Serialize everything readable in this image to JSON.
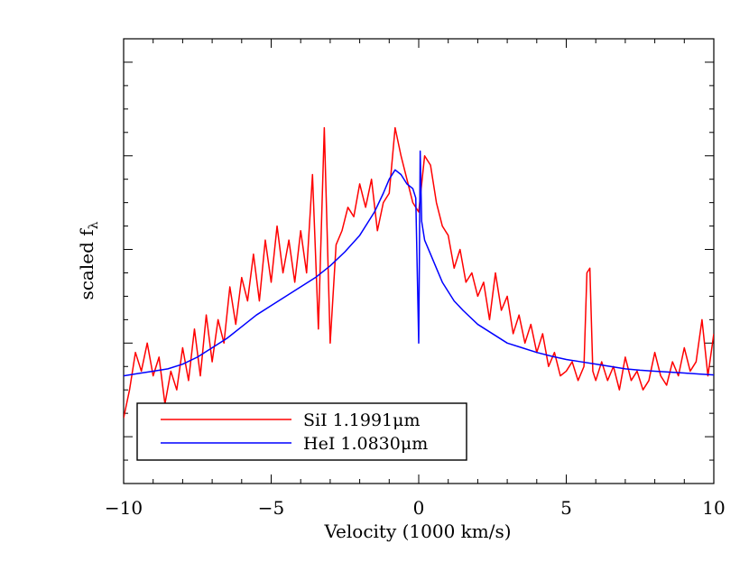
{
  "chart_data": {
    "type": "line",
    "title": "",
    "xlabel": "Velocity (1000 km/s)",
    "ylabel": "scaled f",
    "ylabel_subscript": "λ",
    "xlim": [
      -10,
      10
    ],
    "ylim": [
      -1.0,
      8.5
    ],
    "x_ticks": [
      "−10",
      "−5",
      "0",
      "5",
      "10"
    ],
    "x_tick_values": [
      -10,
      -5,
      0,
      5,
      10
    ],
    "y_tick_labels_visible": false,
    "grid": false,
    "legend": {
      "position": "bottom-left",
      "entries": [
        {
          "name": "SiI 1.1991μm",
          "color": "#ff0000"
        },
        {
          "name": "HeI 1.0830μm",
          "color": "#0000ff"
        }
      ]
    },
    "series": [
      {
        "name": "SiI 1.1991μm",
        "color": "#ff0000",
        "x": [
          -10.0,
          -9.8,
          -9.6,
          -9.4,
          -9.2,
          -9.0,
          -8.8,
          -8.6,
          -8.4,
          -8.2,
          -8.0,
          -7.8,
          -7.6,
          -7.4,
          -7.2,
          -7.0,
          -6.8,
          -6.6,
          -6.4,
          -6.2,
          -6.0,
          -5.8,
          -5.6,
          -5.4,
          -5.2,
          -5.0,
          -4.8,
          -4.6,
          -4.4,
          -4.2,
          -4.0,
          -3.8,
          -3.6,
          -3.4,
          -3.2,
          -3.0,
          -2.8,
          -2.6,
          -2.4,
          -2.2,
          -2.0,
          -1.8,
          -1.6,
          -1.4,
          -1.2,
          -1.0,
          -0.8,
          -0.6,
          -0.4,
          -0.2,
          0.0,
          0.2,
          0.4,
          0.6,
          0.8,
          1.0,
          1.2,
          1.4,
          1.6,
          1.8,
          2.0,
          2.2,
          2.4,
          2.6,
          2.8,
          3.0,
          3.2,
          3.4,
          3.6,
          3.8,
          4.0,
          4.2,
          4.4,
          4.6,
          4.8,
          5.0,
          5.2,
          5.4,
          5.6,
          5.7,
          5.8,
          5.9,
          6.0,
          6.2,
          6.4,
          6.6,
          6.8,
          7.0,
          7.2,
          7.4,
          7.6,
          7.8,
          8.0,
          8.2,
          8.4,
          8.6,
          8.8,
          9.0,
          9.2,
          9.4,
          9.6,
          9.8,
          10.0
        ],
        "values": [
          0.4,
          1.0,
          1.8,
          1.4,
          2.0,
          1.3,
          1.7,
          0.7,
          1.4,
          1.0,
          1.9,
          1.2,
          2.3,
          1.3,
          2.6,
          1.6,
          2.5,
          2.0,
          3.2,
          2.4,
          3.4,
          2.9,
          3.9,
          2.9,
          4.2,
          3.3,
          4.5,
          3.5,
          4.2,
          3.3,
          4.4,
          3.5,
          5.6,
          2.3,
          6.6,
          2.0,
          4.1,
          4.4,
          4.9,
          4.7,
          5.4,
          4.9,
          5.5,
          4.4,
          5.0,
          5.2,
          6.6,
          6.0,
          5.5,
          5.0,
          4.8,
          6.0,
          5.8,
          5.0,
          4.5,
          4.3,
          3.6,
          4.0,
          3.3,
          3.5,
          3.0,
          3.3,
          2.5,
          3.5,
          2.7,
          3.0,
          2.2,
          2.6,
          2.0,
          2.4,
          1.8,
          2.2,
          1.5,
          1.8,
          1.3,
          1.4,
          1.6,
          1.2,
          1.5,
          3.5,
          3.6,
          1.4,
          1.2,
          1.6,
          1.2,
          1.5,
          1.0,
          1.7,
          1.2,
          1.4,
          1.0,
          1.2,
          1.8,
          1.3,
          1.1,
          1.6,
          1.3,
          1.9,
          1.4,
          1.6,
          2.5,
          1.3,
          2.2
        ]
      },
      {
        "name": "HeI 1.0830μm",
        "color": "#0000ff",
        "x": [
          -10.0,
          -9.5,
          -9.0,
          -8.5,
          -8.0,
          -7.5,
          -7.0,
          -6.5,
          -6.0,
          -5.5,
          -5.0,
          -4.5,
          -4.0,
          -3.5,
          -3.0,
          -2.5,
          -2.0,
          -1.5,
          -1.2,
          -1.0,
          -0.8,
          -0.6,
          -0.4,
          -0.2,
          -0.1,
          0.0,
          0.05,
          0.1,
          0.2,
          0.4,
          0.6,
          0.8,
          1.0,
          1.2,
          1.5,
          2.0,
          2.5,
          3.0,
          3.5,
          4.0,
          4.5,
          5.0,
          5.5,
          6.0,
          6.5,
          7.0,
          7.5,
          8.0,
          8.5,
          9.0,
          9.5,
          10.0
        ],
        "values": [
          1.3,
          1.35,
          1.4,
          1.45,
          1.55,
          1.7,
          1.9,
          2.1,
          2.35,
          2.6,
          2.8,
          3.0,
          3.2,
          3.4,
          3.65,
          3.95,
          4.3,
          4.8,
          5.2,
          5.5,
          5.7,
          5.6,
          5.4,
          5.3,
          5.1,
          2.0,
          6.1,
          4.6,
          4.2,
          3.9,
          3.6,
          3.3,
          3.1,
          2.9,
          2.7,
          2.4,
          2.2,
          2.0,
          1.9,
          1.8,
          1.72,
          1.65,
          1.6,
          1.55,
          1.5,
          1.45,
          1.42,
          1.4,
          1.38,
          1.36,
          1.34,
          1.32
        ]
      }
    ]
  }
}
